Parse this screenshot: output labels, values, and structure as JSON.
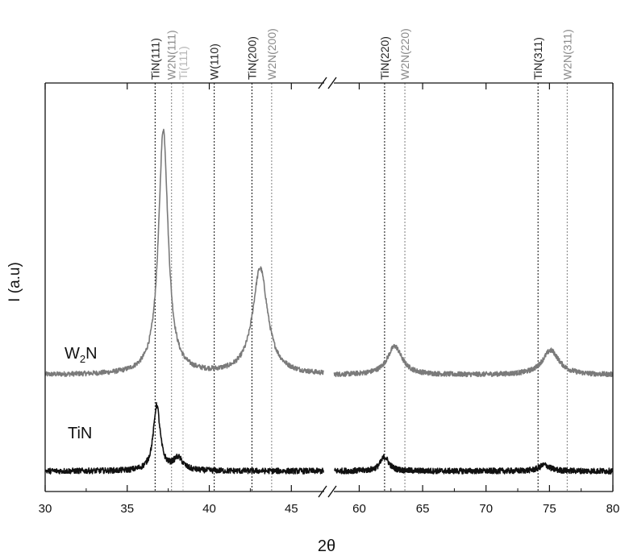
{
  "chart_data": {
    "type": "line",
    "title": "",
    "xlabel": "2θ",
    "ylabel": "I (a.u)",
    "x_break": [
      47,
      58
    ],
    "xlim_left": [
      30,
      47
    ],
    "xlim_right": [
      58,
      80
    ],
    "xticks_left": [
      30,
      35,
      40,
      45
    ],
    "xticks_right": [
      60,
      65,
      70,
      75,
      80
    ],
    "ylim": [
      0,
      100
    ],
    "grid": false,
    "colors": {
      "W2N": "#7a7a7a",
      "TiN": "#111111",
      "Ti": "#b5b5b5",
      "ref_black": "#222222",
      "ref_gray": "#8a8a8a"
    },
    "reference_lines": [
      {
        "label": "TiN(111)",
        "x": 36.7,
        "color": "ref_black"
      },
      {
        "label": "W2N(111)",
        "x": 37.7,
        "color": "ref_gray"
      },
      {
        "label": "Ti(111)",
        "x": 38.4,
        "color": "Ti"
      },
      {
        "label": "W(110)",
        "x": 40.3,
        "color": "ref_black"
      },
      {
        "label": "TiN(200)",
        "x": 42.6,
        "color": "ref_black"
      },
      {
        "label": "W2N(200)",
        "x": 43.8,
        "color": "ref_gray"
      },
      {
        "label": "TiN(220)",
        "x": 62.0,
        "color": "ref_black"
      },
      {
        "label": "W2N(220)",
        "x": 63.6,
        "color": "ref_gray"
      },
      {
        "label": "TiN(311)",
        "x": 74.1,
        "color": "ref_black"
      },
      {
        "label": "W2N(311)",
        "x": 76.4,
        "color": "ref_gray"
      }
    ],
    "series": [
      {
        "name": "W2N",
        "label_main": "W",
        "label_sub": "2",
        "label_end": "N",
        "color": "W2N",
        "baseline": 28.5,
        "noise": 0.6,
        "peaks": [
          {
            "x": 37.2,
            "height": 60,
            "width": 0.35
          },
          {
            "x": 43.1,
            "height": 26,
            "width": 0.55
          },
          {
            "x": 62.8,
            "height": 7,
            "width": 0.7
          },
          {
            "x": 75.1,
            "height": 6,
            "width": 0.8
          }
        ]
      },
      {
        "name": "TiN",
        "label_main": "TiN",
        "label_sub": "",
        "label_end": "",
        "color": "TiN",
        "baseline": 5,
        "noise": 0.7,
        "peaks": [
          {
            "x": 36.8,
            "height": 16,
            "width": 0.25
          },
          {
            "x": 38.1,
            "height": 3,
            "width": 0.35
          },
          {
            "x": 62.0,
            "height": 3.5,
            "width": 0.4
          },
          {
            "x": 74.6,
            "height": 1.5,
            "width": 0.5
          }
        ]
      }
    ]
  }
}
